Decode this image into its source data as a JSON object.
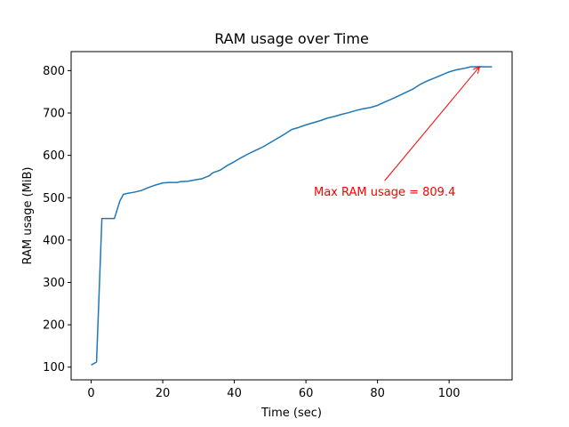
{
  "chart_data": {
    "type": "line",
    "title": "RAM usage over Time",
    "xlabel": "Time (sec)",
    "ylabel": "RAM usage (MiB)",
    "xlim": [
      -5.6,
      117.6
    ],
    "ylim": [
      70,
      845
    ],
    "xticks": [
      0,
      20,
      40,
      60,
      80,
      100
    ],
    "yticks": [
      100,
      200,
      300,
      400,
      500,
      600,
      700,
      800
    ],
    "grid": false,
    "series_color": "#1f77b4",
    "series": [
      {
        "x": [
          0,
          1.5,
          3,
          4,
          5,
          6.5,
          8,
          9,
          10,
          12,
          14,
          16,
          18,
          20,
          22,
          24,
          25,
          27,
          29,
          31,
          33,
          34,
          36,
          38,
          40,
          42,
          44,
          46,
          48,
          50,
          52,
          54,
          56,
          58,
          60,
          62,
          64,
          66,
          68,
          70,
          72,
          74,
          76,
          78,
          80,
          82,
          84,
          86,
          88,
          90,
          92,
          94,
          96,
          98,
          100,
          102,
          104,
          106,
          108,
          110,
          112
        ],
        "y": [
          105,
          112,
          451,
          451,
          451,
          451,
          492,
          508,
          510,
          513,
          517,
          524,
          530,
          535,
          536,
          536,
          538,
          539,
          542,
          545,
          552,
          559,
          565,
          576,
          585,
          595,
          604,
          612,
          620,
          630,
          640,
          650,
          661,
          666,
          672,
          677,
          682,
          688,
          692,
          697,
          701,
          706,
          710,
          713,
          718,
          726,
          733,
          741,
          749,
          757,
          768,
          776,
          783,
          790,
          797,
          802,
          805,
          809,
          809.4,
          809,
          809
        ]
      }
    ],
    "annotation": {
      "text": "Max RAM usage = 809.4",
      "color": "#ff0000",
      "xy": [
        108.5,
        809.4
      ],
      "xytext": [
        82,
        515
      ]
    }
  }
}
